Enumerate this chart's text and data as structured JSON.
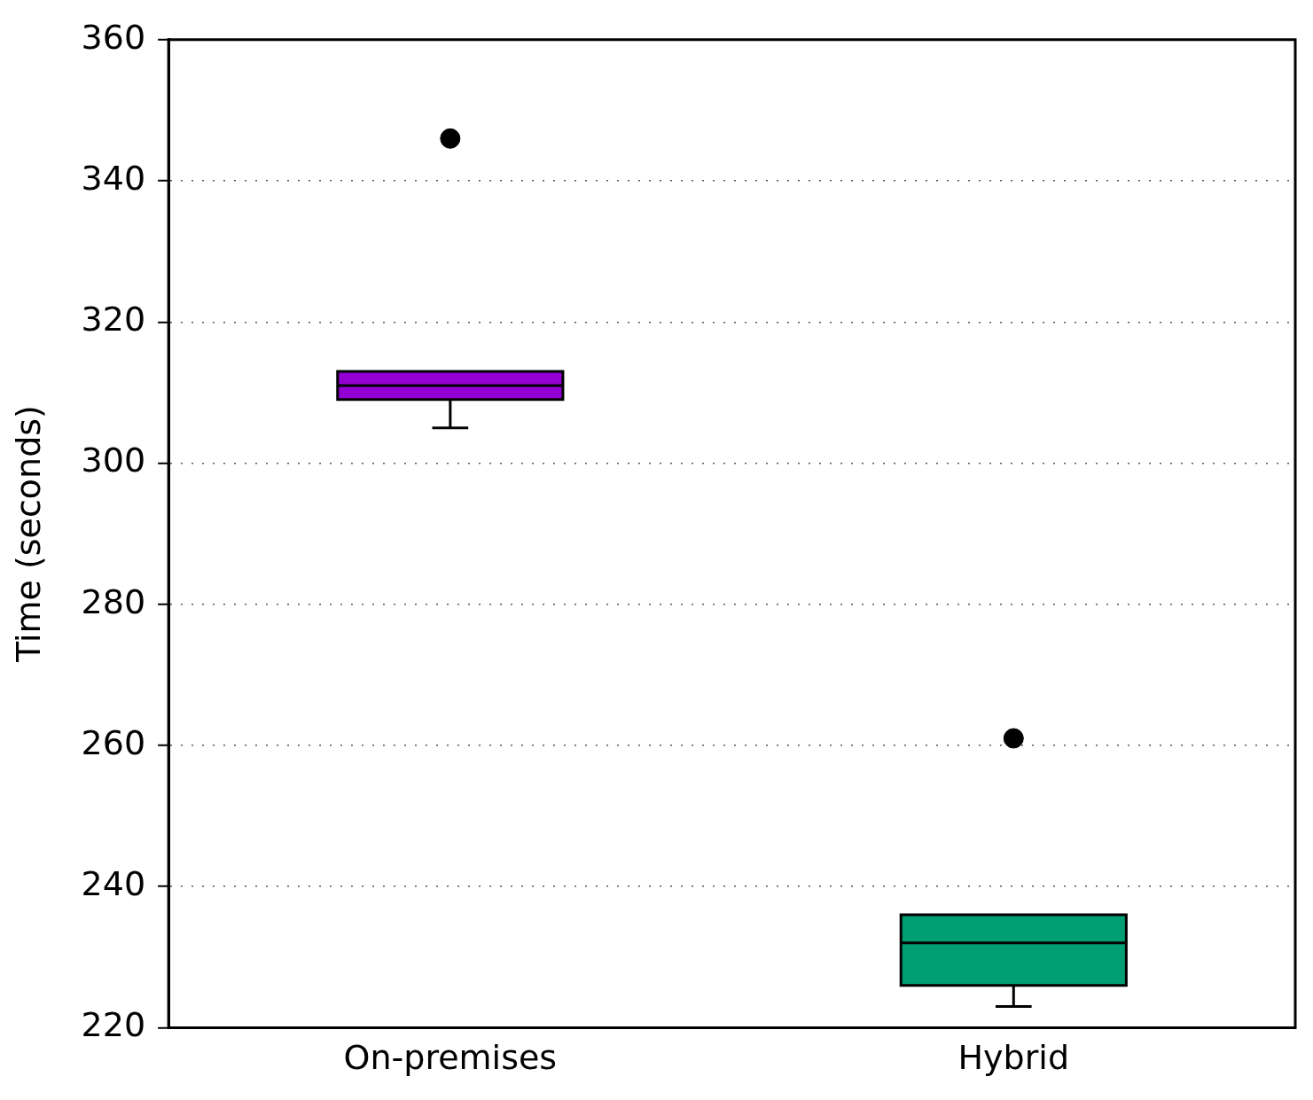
{
  "chart_data": {
    "type": "box",
    "ylabel": "Time (seconds)",
    "categories": [
      "On-premises",
      "Hybrid"
    ],
    "colors": [
      "#9400d3",
      "#009e73"
    ],
    "boxes": [
      {
        "low": 305,
        "q1": 309,
        "median": 311,
        "q3": 313,
        "high": 313,
        "outliers": [
          346
        ]
      },
      {
        "low": 223,
        "q1": 226,
        "median": 232,
        "q3": 236,
        "high": 236,
        "outliers": [
          261
        ]
      }
    ],
    "ylim": [
      220,
      360
    ],
    "yticks": [
      220,
      240,
      260,
      280,
      300,
      320,
      340,
      360
    ],
    "grid": "y",
    "legend": false
  }
}
